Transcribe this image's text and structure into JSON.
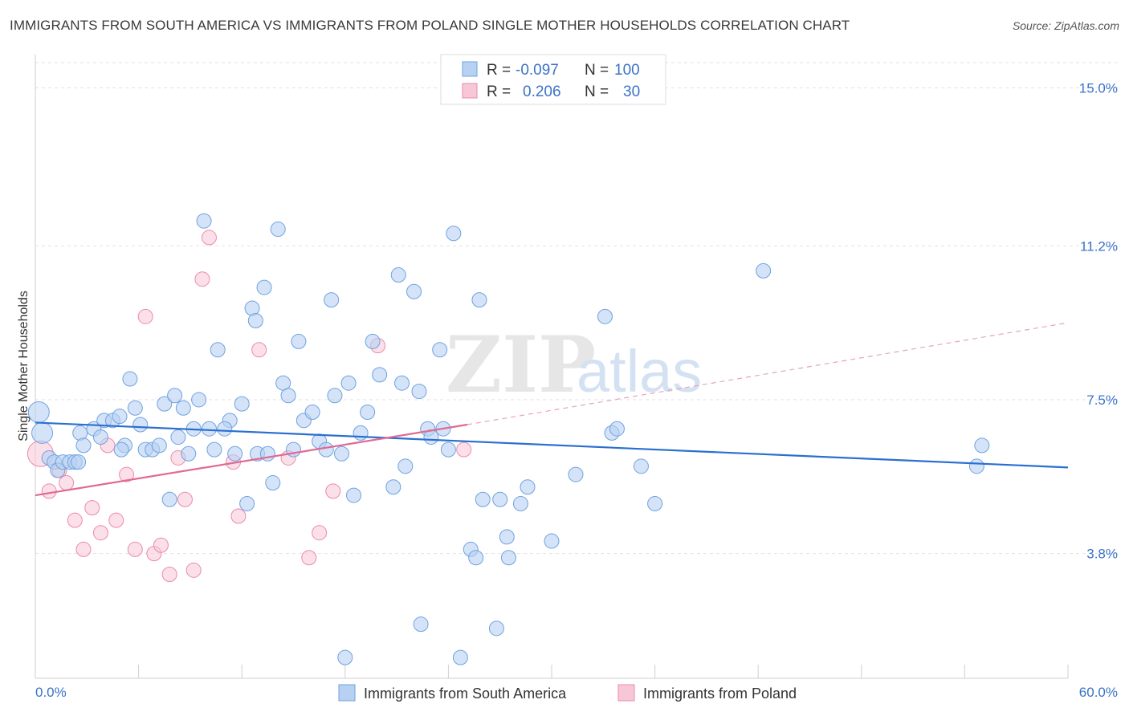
{
  "title": "IMMIGRANTS FROM SOUTH AMERICA VS IMMIGRANTS FROM POLAND SINGLE MOTHER HOUSEHOLDS CORRELATION CHART",
  "source": "Source: ZipAtlas.com",
  "watermark": {
    "zip": "ZIP",
    "atlas": "atlas"
  },
  "legend": {
    "rows": [
      {
        "r_label": "R = ",
        "r_value": "-0.097",
        "n_label": "N = ",
        "n_value": "100",
        "color": "#a8c8f0"
      },
      {
        "r_label": "R = ",
        "r_value": "0.206",
        "n_label": "N = ",
        "n_value": "30",
        "color": "#f5b7cb"
      }
    ]
  },
  "bottom_legend": [
    "Immigrants from South America",
    "Immigrants from Poland"
  ],
  "chart_data": {
    "type": "scatter",
    "title": "IMMIGRANTS FROM SOUTH AMERICA VS IMMIGRANTS FROM POLAND SINGLE MOTHER HOUSEHOLDS CORRELATION CHART",
    "xlabel": "",
    "ylabel": "Single Mother Households",
    "xlim": [
      0,
      60
    ],
    "ylim": [
      0.8,
      15.8
    ],
    "x_tick_labels": [
      "0.0%",
      "60.0%"
    ],
    "y_ticks": [
      3.8,
      7.5,
      11.2,
      15.0
    ],
    "y_tick_labels": [
      "3.8%",
      "7.5%",
      "11.2%",
      "15.0%"
    ],
    "grid": true,
    "legend_position": "top-center",
    "series": [
      {
        "name": "Immigrants from South America",
        "color": "#6fa2e0",
        "fill": "#b7d1f2",
        "trend": {
          "x": [
            0,
            60
          ],
          "y": [
            6.95,
            5.87
          ]
        },
        "points": [
          [
            0.2,
            7.2
          ],
          [
            0.4,
            6.7
          ],
          [
            0.8,
            6.1
          ],
          [
            1.1,
            6.0
          ],
          [
            1.3,
            5.8
          ],
          [
            1.6,
            6.0
          ],
          [
            2.0,
            6.0
          ],
          [
            2.3,
            6.0
          ],
          [
            2.6,
            6.7
          ],
          [
            2.8,
            6.4
          ],
          [
            3.4,
            6.8
          ],
          [
            3.8,
            6.6
          ],
          [
            4.0,
            7.0
          ],
          [
            4.5,
            7.0
          ],
          [
            4.9,
            7.1
          ],
          [
            5.2,
            6.4
          ],
          [
            5.5,
            8.0
          ],
          [
            5.8,
            7.3
          ],
          [
            6.1,
            6.9
          ],
          [
            6.4,
            6.3
          ],
          [
            6.8,
            6.3
          ],
          [
            7.2,
            6.4
          ],
          [
            7.5,
            7.4
          ],
          [
            7.8,
            5.1
          ],
          [
            8.1,
            7.6
          ],
          [
            8.3,
            6.6
          ],
          [
            8.6,
            7.3
          ],
          [
            8.9,
            6.2
          ],
          [
            9.2,
            6.8
          ],
          [
            9.5,
            7.5
          ],
          [
            9.8,
            11.8
          ],
          [
            10.1,
            6.8
          ],
          [
            10.4,
            6.3
          ],
          [
            10.6,
            8.7
          ],
          [
            11.3,
            7.0
          ],
          [
            11.6,
            6.2
          ],
          [
            12.0,
            7.4
          ],
          [
            12.3,
            5.0
          ],
          [
            12.6,
            9.7
          ],
          [
            12.8,
            9.4
          ],
          [
            12.9,
            6.2
          ],
          [
            13.3,
            10.2
          ],
          [
            13.5,
            6.2
          ],
          [
            13.8,
            5.5
          ],
          [
            14.1,
            11.6
          ],
          [
            14.4,
            7.9
          ],
          [
            14.7,
            7.6
          ],
          [
            15.0,
            6.3
          ],
          [
            15.3,
            8.9
          ],
          [
            15.6,
            7.0
          ],
          [
            16.1,
            7.2
          ],
          [
            16.5,
            6.5
          ],
          [
            16.9,
            6.3
          ],
          [
            17.2,
            9.9
          ],
          [
            17.4,
            7.6
          ],
          [
            17.8,
            6.2
          ],
          [
            18.2,
            7.9
          ],
          [
            18.5,
            5.2
          ],
          [
            18.9,
            6.7
          ],
          [
            19.3,
            7.2
          ],
          [
            19.6,
            8.9
          ],
          [
            20.0,
            8.1
          ],
          [
            20.8,
            5.4
          ],
          [
            21.1,
            10.5
          ],
          [
            21.3,
            7.9
          ],
          [
            21.5,
            5.9
          ],
          [
            22.0,
            10.1
          ],
          [
            22.3,
            7.7
          ],
          [
            22.4,
            2.1
          ],
          [
            22.8,
            6.8
          ],
          [
            23.0,
            6.6
          ],
          [
            23.5,
            8.7
          ],
          [
            23.7,
            6.8
          ],
          [
            24.0,
            6.3
          ],
          [
            24.3,
            11.5
          ],
          [
            24.7,
            1.3
          ],
          [
            25.3,
            3.9
          ],
          [
            25.6,
            3.7
          ],
          [
            25.8,
            9.9
          ],
          [
            26.8,
            2.0
          ],
          [
            27.0,
            5.1
          ],
          [
            27.4,
            4.2
          ],
          [
            27.5,
            3.7
          ],
          [
            28.2,
            5.0
          ],
          [
            28.6,
            5.4
          ],
          [
            30.0,
            4.1
          ],
          [
            31.4,
            5.7
          ],
          [
            33.1,
            9.5
          ],
          [
            33.5,
            6.7
          ],
          [
            33.8,
            6.8
          ],
          [
            35.2,
            5.9
          ],
          [
            36.0,
            5.0
          ],
          [
            42.3,
            10.6
          ],
          [
            54.7,
            5.9
          ],
          [
            55.0,
            6.4
          ],
          [
            18.0,
            1.3
          ],
          [
            2.5,
            6.0
          ],
          [
            5.0,
            6.3
          ],
          [
            11.0,
            6.8
          ],
          [
            26.0,
            5.1
          ]
        ]
      },
      {
        "name": "Immigrants from Poland",
        "color": "#ec8aab",
        "fill": "#f7c7d7",
        "trend": {
          "x": [
            0,
            25.1
          ],
          "y": [
            5.2,
            6.9
          ]
        },
        "trend_extension": {
          "x": [
            25.1,
            60
          ],
          "y": [
            6.9,
            9.35
          ]
        },
        "points": [
          [
            0.3,
            6.2
          ],
          [
            0.8,
            5.3
          ],
          [
            1.4,
            5.8
          ],
          [
            1.8,
            5.5
          ],
          [
            2.3,
            4.6
          ],
          [
            2.8,
            3.9
          ],
          [
            3.3,
            4.9
          ],
          [
            3.8,
            4.3
          ],
          [
            4.2,
            6.4
          ],
          [
            4.7,
            4.6
          ],
          [
            5.3,
            5.7
          ],
          [
            5.8,
            3.9
          ],
          [
            6.4,
            9.5
          ],
          [
            6.9,
            3.8
          ],
          [
            7.3,
            4.0
          ],
          [
            7.8,
            3.3
          ],
          [
            8.3,
            6.1
          ],
          [
            8.7,
            5.1
          ],
          [
            9.2,
            3.4
          ],
          [
            9.7,
            10.4
          ],
          [
            10.1,
            11.4
          ],
          [
            11.5,
            6.0
          ],
          [
            11.8,
            4.7
          ],
          [
            13.0,
            8.7
          ],
          [
            14.7,
            6.1
          ],
          [
            15.9,
            3.7
          ],
          [
            16.5,
            4.3
          ],
          [
            17.3,
            5.3
          ],
          [
            19.9,
            8.8
          ],
          [
            24.9,
            6.3
          ]
        ]
      }
    ]
  }
}
